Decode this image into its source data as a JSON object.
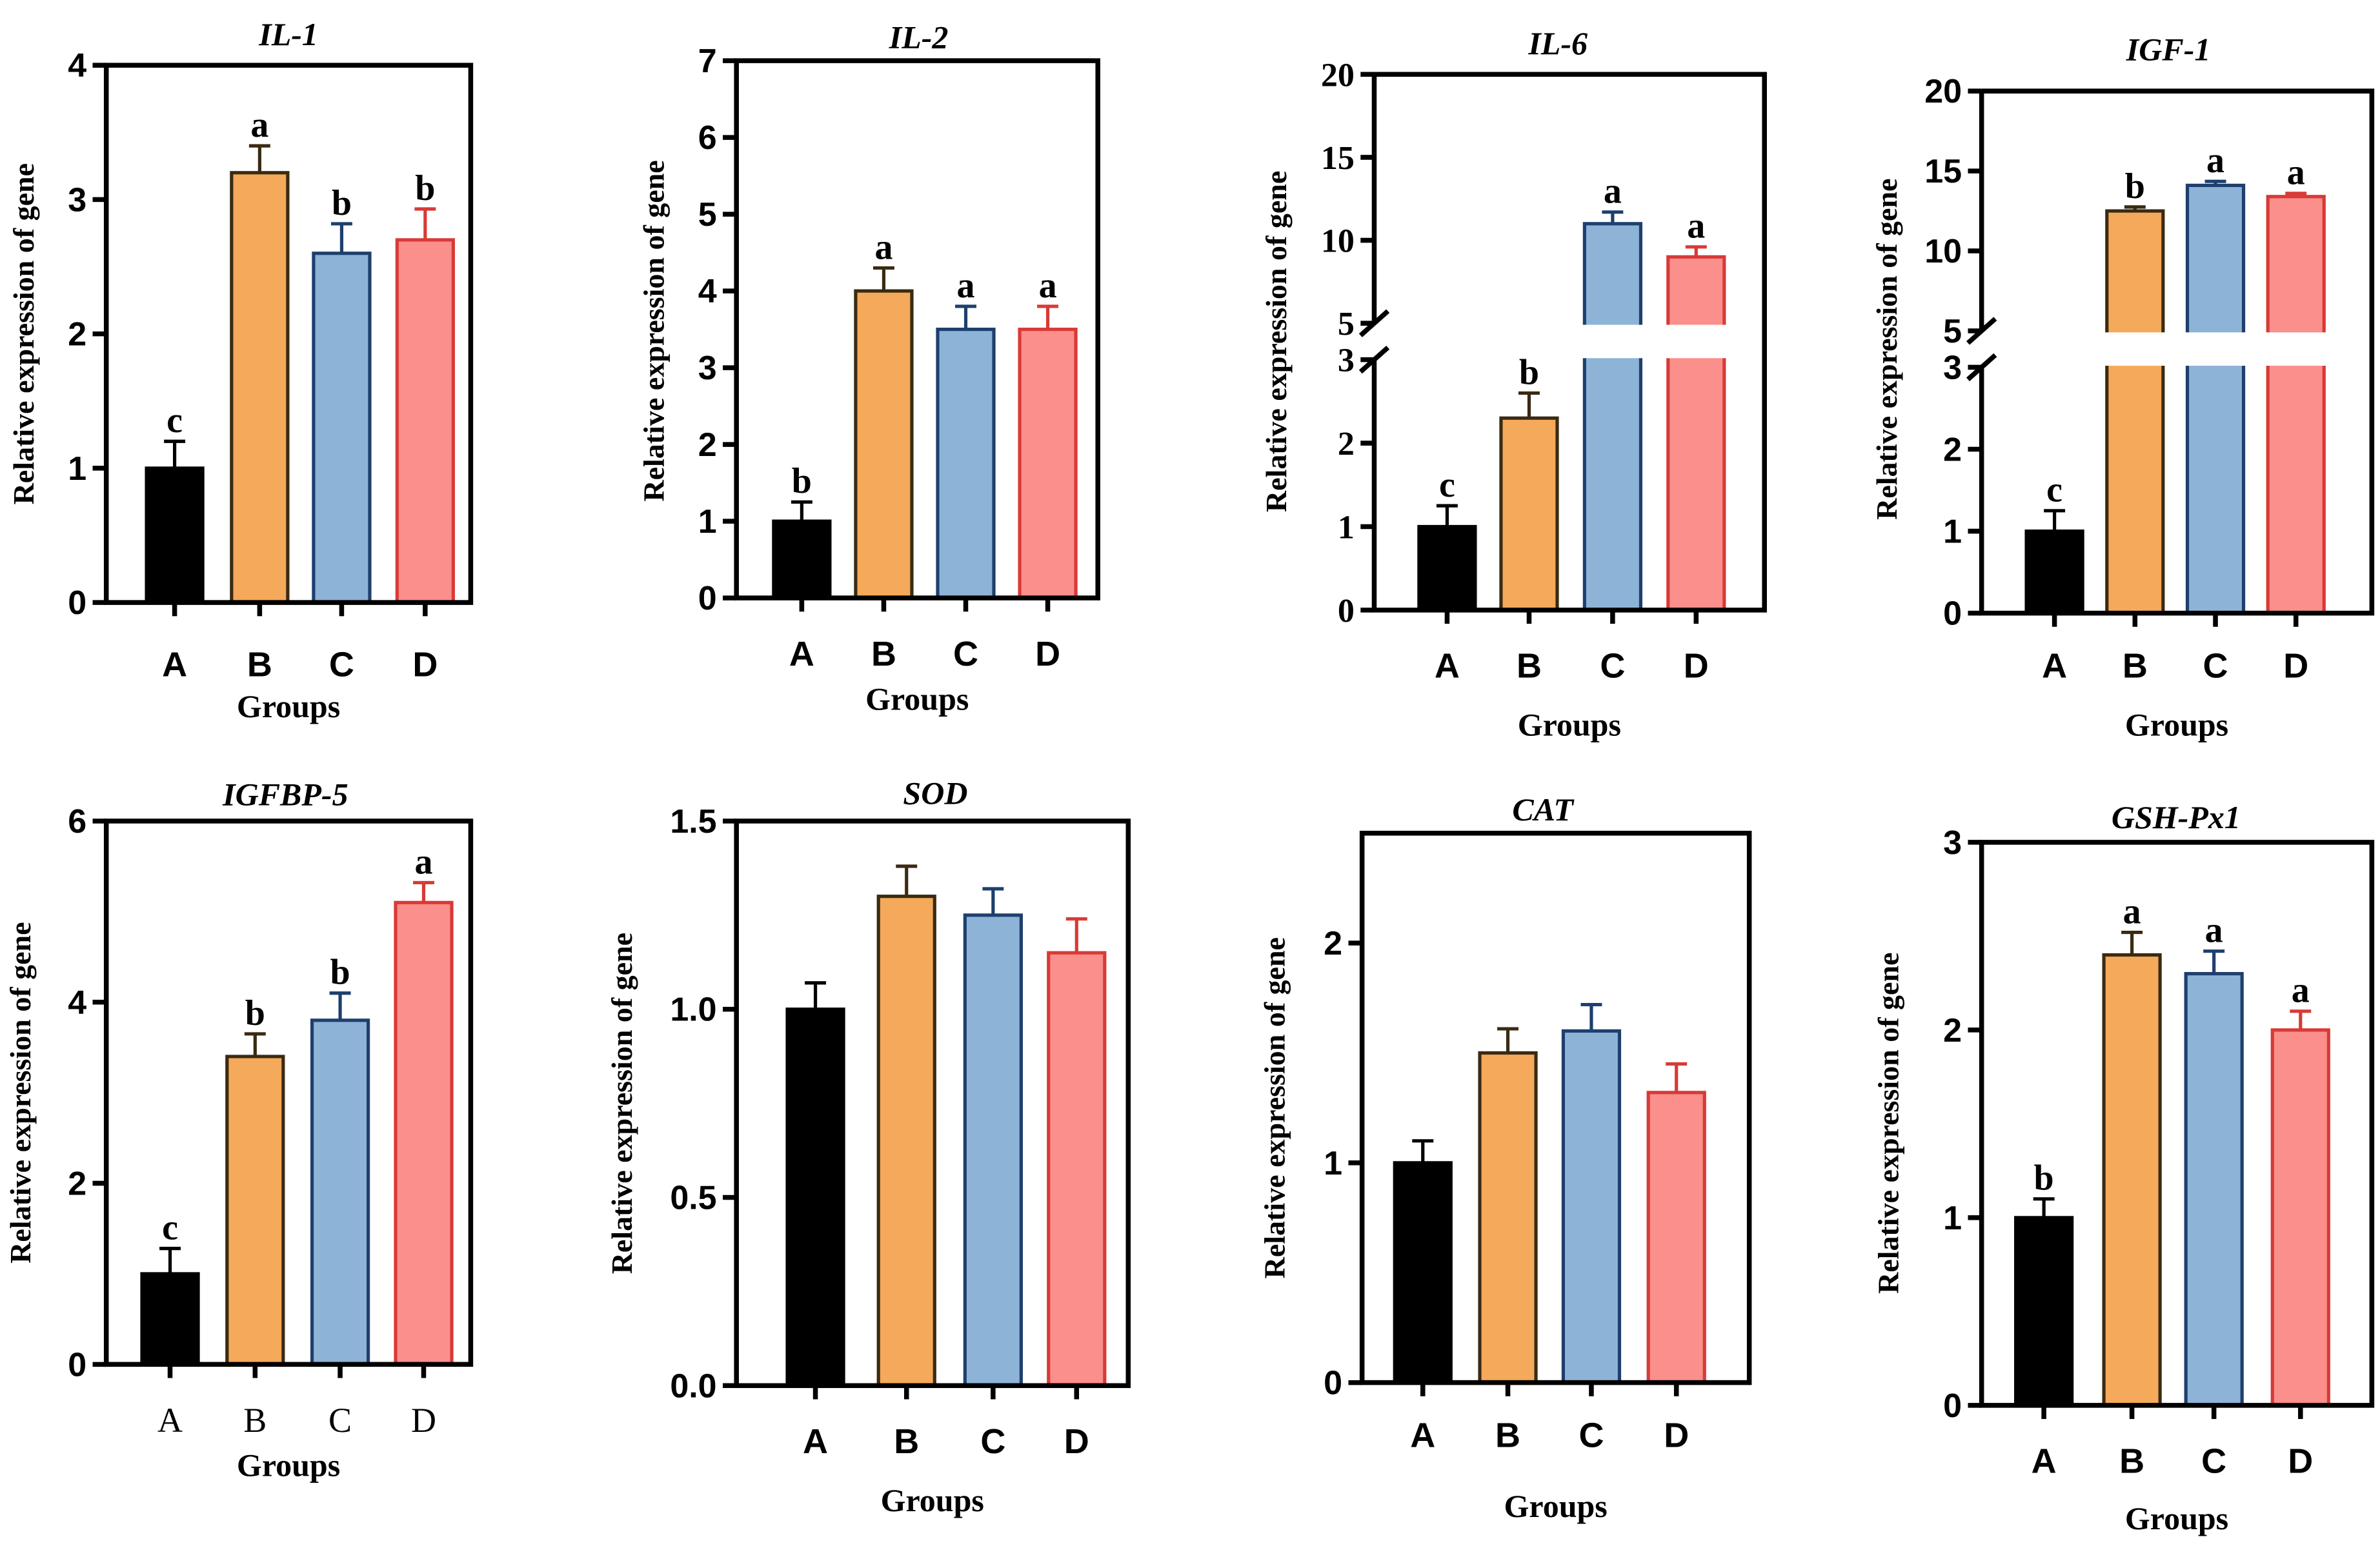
{
  "colors": {
    "A": "#000000",
    "B": "#F5A95B",
    "C": "#8DB3D7",
    "D": "#FA8F8C"
  },
  "edge_colors": {
    "A": "#000000",
    "B": "#3a2a12",
    "C": "#1e3f6e",
    "D": "#d83a36"
  },
  "chart_data": [
    {
      "type": "bar",
      "title": "IL-1",
      "ylabel": "Relative expression of  gene",
      "xlabel": "Groups",
      "categories": [
        "A",
        "B",
        "C",
        "D"
      ],
      "values": [
        1.0,
        3.2,
        2.6,
        2.7
      ],
      "errors": [
        0.2,
        0.2,
        0.22,
        0.23
      ],
      "significance": [
        "c",
        "a",
        "b",
        "b"
      ],
      "ylim": [
        0,
        4
      ],
      "yticks": [
        "0",
        "1",
        "2",
        "3",
        "4"
      ]
    },
    {
      "type": "bar",
      "title": "IL-2",
      "ylabel": "Relative expression of gene",
      "xlabel": "Groups",
      "categories": [
        "A",
        "B",
        "C",
        "D"
      ],
      "values": [
        1.0,
        4.0,
        3.5,
        3.5
      ],
      "errors": [
        0.25,
        0.3,
        0.3,
        0.3
      ],
      "significance": [
        "b",
        "a",
        "a",
        "a"
      ],
      "ylim": [
        0,
        7
      ],
      "yticks": [
        "0",
        "1",
        "2",
        "3",
        "4",
        "5",
        "6",
        "7"
      ]
    },
    {
      "type": "bar",
      "title": "IL-6",
      "ylabel": "Relative expression of gene",
      "xlabel": "Groups",
      "categories": [
        "A",
        "B",
        "C",
        "D"
      ],
      "values": [
        1.0,
        2.3,
        11.0,
        9.0
      ],
      "errors": [
        0.25,
        0.3,
        0.7,
        0.6
      ],
      "significance": [
        "c",
        "b",
        "a",
        "a"
      ],
      "ylim": [
        0,
        20
      ],
      "axis_break": [
        3,
        5
      ],
      "yticks": [
        "0",
        "1",
        "2",
        "3",
        "5",
        "10",
        "15",
        "20"
      ]
    },
    {
      "type": "bar",
      "title": "IGF-1",
      "ylabel": "Relative expression of  gene",
      "xlabel": "Groups",
      "categories": [
        "A",
        "B",
        "C",
        "D"
      ],
      "values": [
        1.0,
        12.5,
        14.1,
        13.4
      ],
      "errors": [
        0.25,
        0.25,
        0.25,
        0.2
      ],
      "significance": [
        "c",
        "b",
        "a",
        "a"
      ],
      "ylim": [
        0,
        20
      ],
      "axis_break": [
        3,
        5
      ],
      "yticks": [
        "0",
        "1",
        "2",
        "3",
        "5",
        "10",
        "15",
        "20"
      ]
    },
    {
      "type": "bar",
      "title": "IGFBP-5",
      "ylabel": "Relative expression of  gene",
      "xlabel": "Groups",
      "categories": [
        "A",
        "B",
        "C",
        "D"
      ],
      "values": [
        1.0,
        3.4,
        3.8,
        5.1
      ],
      "errors": [
        0.28,
        0.25,
        0.3,
        0.22
      ],
      "significance": [
        "c",
        "b",
        "b",
        "a"
      ],
      "ylim": [
        0,
        6
      ],
      "yticks": [
        "0",
        "2",
        "4",
        "6"
      ]
    },
    {
      "type": "bar",
      "title": "SOD",
      "ylabel": "Relative expression of gene",
      "xlabel": "Groups",
      "categories": [
        "A",
        "B",
        "C",
        "D"
      ],
      "values": [
        1.0,
        1.3,
        1.25,
        1.15
      ],
      "errors": [
        0.07,
        0.08,
        0.07,
        0.09
      ],
      "significance": [
        "",
        "",
        "",
        ""
      ],
      "ylim": [
        0,
        1.5
      ],
      "yticks": [
        "0.0",
        "0.5",
        "1.0",
        "1.5"
      ]
    },
    {
      "type": "bar",
      "title": "CAT",
      "ylabel": "Relative expression of gene",
      "xlabel": "Groups",
      "categories": [
        "A",
        "B",
        "C",
        "D"
      ],
      "values": [
        1.0,
        1.5,
        1.6,
        1.32
      ],
      "errors": [
        0.1,
        0.11,
        0.12,
        0.13
      ],
      "significance": [
        "",
        "",
        "",
        ""
      ],
      "ylim": [
        0,
        2.5
      ],
      "yticks": [
        "0",
        "1",
        "2"
      ]
    },
    {
      "type": "bar",
      "title": "GSH-Px1",
      "ylabel": "Relative expression of gene",
      "xlabel": "Groups",
      "categories": [
        "A",
        "B",
        "C",
        "D"
      ],
      "values": [
        1.0,
        2.4,
        2.3,
        2.0
      ],
      "errors": [
        0.1,
        0.12,
        0.12,
        0.1
      ],
      "significance": [
        "b",
        "a",
        "a",
        "a"
      ],
      "ylim": [
        0,
        3
      ],
      "yticks": [
        "0",
        "1",
        "2",
        "3"
      ]
    }
  ]
}
